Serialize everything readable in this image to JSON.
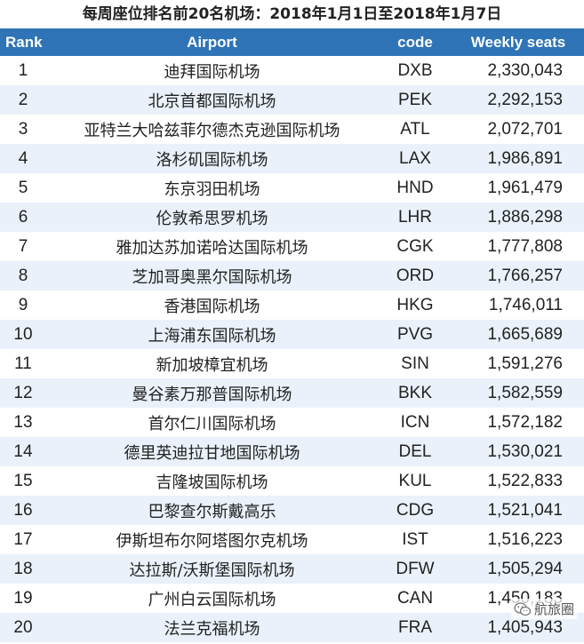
{
  "title": "每周座位排名前20名机场：2018年1月1日至2018年1月7日",
  "columns": {
    "rank": "Rank",
    "airport": "Airport",
    "code": "code",
    "seats": "Weekly seats"
  },
  "rows": [
    {
      "rank": "1",
      "airport": "迪拜国际机场",
      "code": "DXB",
      "seats": "2,330,043"
    },
    {
      "rank": "2",
      "airport": "北京首都国际机场",
      "code": "PEK",
      "seats": "2,292,153"
    },
    {
      "rank": "3",
      "airport": "亚特兰大哈兹菲尔德杰克逊国际机场",
      "code": "ATL",
      "seats": "2,072,701"
    },
    {
      "rank": "4",
      "airport": "洛杉矶国际机场",
      "code": "LAX",
      "seats": "1,986,891"
    },
    {
      "rank": "5",
      "airport": "东京羽田机场",
      "code": "HND",
      "seats": "1,961,479"
    },
    {
      "rank": "6",
      "airport": "伦敦希思罗机场",
      "code": "LHR",
      "seats": "1,886,298"
    },
    {
      "rank": "7",
      "airport": "雅加达苏加诺哈达国际机场",
      "code": "CGK",
      "seats": "1,777,808"
    },
    {
      "rank": "8",
      "airport": "芝加哥奥黑尔国际机场",
      "code": "ORD",
      "seats": "1,766,257"
    },
    {
      "rank": "9",
      "airport": "香港国际机场",
      "code": "HKG",
      "seats": "1,746,011"
    },
    {
      "rank": "10",
      "airport": "上海浦东国际机场",
      "code": "PVG",
      "seats": "1,665,689"
    },
    {
      "rank": "11",
      "airport": "新加坡樟宜机场",
      "code": "SIN",
      "seats": "1,591,276"
    },
    {
      "rank": "12",
      "airport": "曼谷素万那普国际机场",
      "code": "BKK",
      "seats": "1,582,559"
    },
    {
      "rank": "13",
      "airport": "首尔仁川国际机场",
      "code": "ICN",
      "seats": "1,572,182"
    },
    {
      "rank": "14",
      "airport": "德里英迪拉甘地国际机场",
      "code": "DEL",
      "seats": "1,530,021"
    },
    {
      "rank": "15",
      "airport": "吉隆坡国际机场",
      "code": "KUL",
      "seats": "1,522,833"
    },
    {
      "rank": "16",
      "airport": "巴黎查尔斯戴高乐",
      "code": "CDG",
      "seats": "1,521,041"
    },
    {
      "rank": "17",
      "airport": "伊斯坦布尔阿塔图尔克机场",
      "code": "IST",
      "seats": "1,516,223"
    },
    {
      "rank": "18",
      "airport": "达拉斯/沃斯堡国际机场",
      "code": "DFW",
      "seats": "1,505,294"
    },
    {
      "rank": "19",
      "airport": "广州白云国际机场",
      "code": "CAN",
      "seats": "1,450,183"
    },
    {
      "rank": "20",
      "airport": "法兰克福机场",
      "code": "FRA",
      "seats": "1,405,943"
    }
  ],
  "watermark": {
    "text": "航旅圈",
    "icon": "wechat-icon"
  },
  "colors": {
    "header_bg": "#2e74b6",
    "header_text": "#ffffff",
    "stripe": "#eaf1fa"
  }
}
